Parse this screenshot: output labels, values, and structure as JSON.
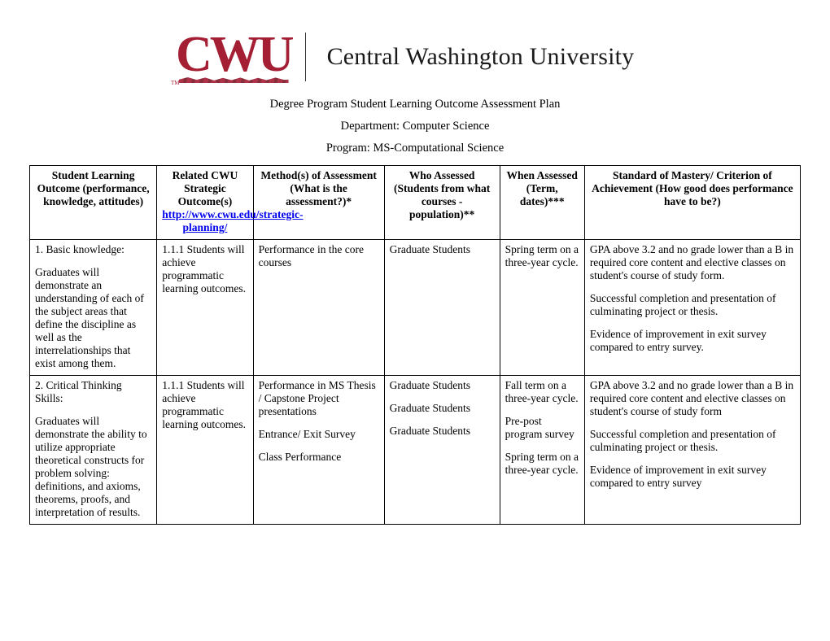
{
  "logo": {
    "abbrev": "CWU",
    "tm": "TM",
    "university_name": "Central Washington University",
    "brand_color": "#a41e34"
  },
  "titles": {
    "line1": "Degree Program Student Learning Outcome Assessment Plan",
    "line2": "Department: Computer Science",
    "line3": "Program: MS-Computational Science"
  },
  "table": {
    "headers": {
      "h1": "Student Learning Outcome (performance, knowledge, attitudes)",
      "h2_top": "Related CWU Strategic Outcome(s)",
      "h2_link": "http://www.cwu.edu/strategic-planning/",
      "h3": "Method(s) of Assessment (What is the assessment?)*",
      "h4": "Who Assessed (Students from what courses - population)**",
      "h5": "When Assessed (Term, dates)***",
      "h6": "Standard of Mastery/ Criterion of Achievement (How good does performance have to be?)"
    },
    "row1": {
      "c1_title": "1. Basic knowledge:",
      "c1_body": "Graduates will demonstrate an understanding of each of the subject areas that define the discipline as well as the interrelationships that exist among them.",
      "c2": "1.1.1 Students will achieve programmatic learning outcomes.",
      "c3": "Performance in the core courses",
      "c4": "Graduate Students",
      "c5": "Spring term on a three-year cycle.",
      "c6_p1": "GPA above 3.2 and no grade lower than a B in required core content and elective classes on student's course of study form.",
      "c6_p2": "Successful completion and presentation of culminating project or thesis.",
      "c6_p3": "Evidence of improvement in exit survey compared to entry survey."
    },
    "row2": {
      "c1_title": "2. Critical Thinking Skills:",
      "c1_body": "Graduates will demonstrate the ability to utilize appropriate theoretical constructs for problem solving: definitions, and axioms, theorems, proofs, and interpretation of results.",
      "c2": "1.1.1 Students will achieve programmatic learning outcomes.",
      "c3_p1": "Performance in MS Thesis / Capstone Project presentations",
      "c3_p2": "Entrance/ Exit Survey",
      "c3_p3": "Class Performance",
      "c4_p1": "Graduate Students",
      "c4_p2": "Graduate Students",
      "c4_p3": "Graduate Students",
      "c5_p1": "Fall term on a three-year cycle.",
      "c5_p2": "Pre-post program survey",
      "c5_p3": "Spring term on a three-year cycle.",
      "c6_p1": "GPA above 3.2 and no grade lower than a B in required core content and elective classes on student's course of study form",
      "c6_p2": "Successful completion and presentation of culminating project or thesis.",
      "c6_p3": "Evidence of improvement in exit survey compared to entry survey"
    }
  }
}
